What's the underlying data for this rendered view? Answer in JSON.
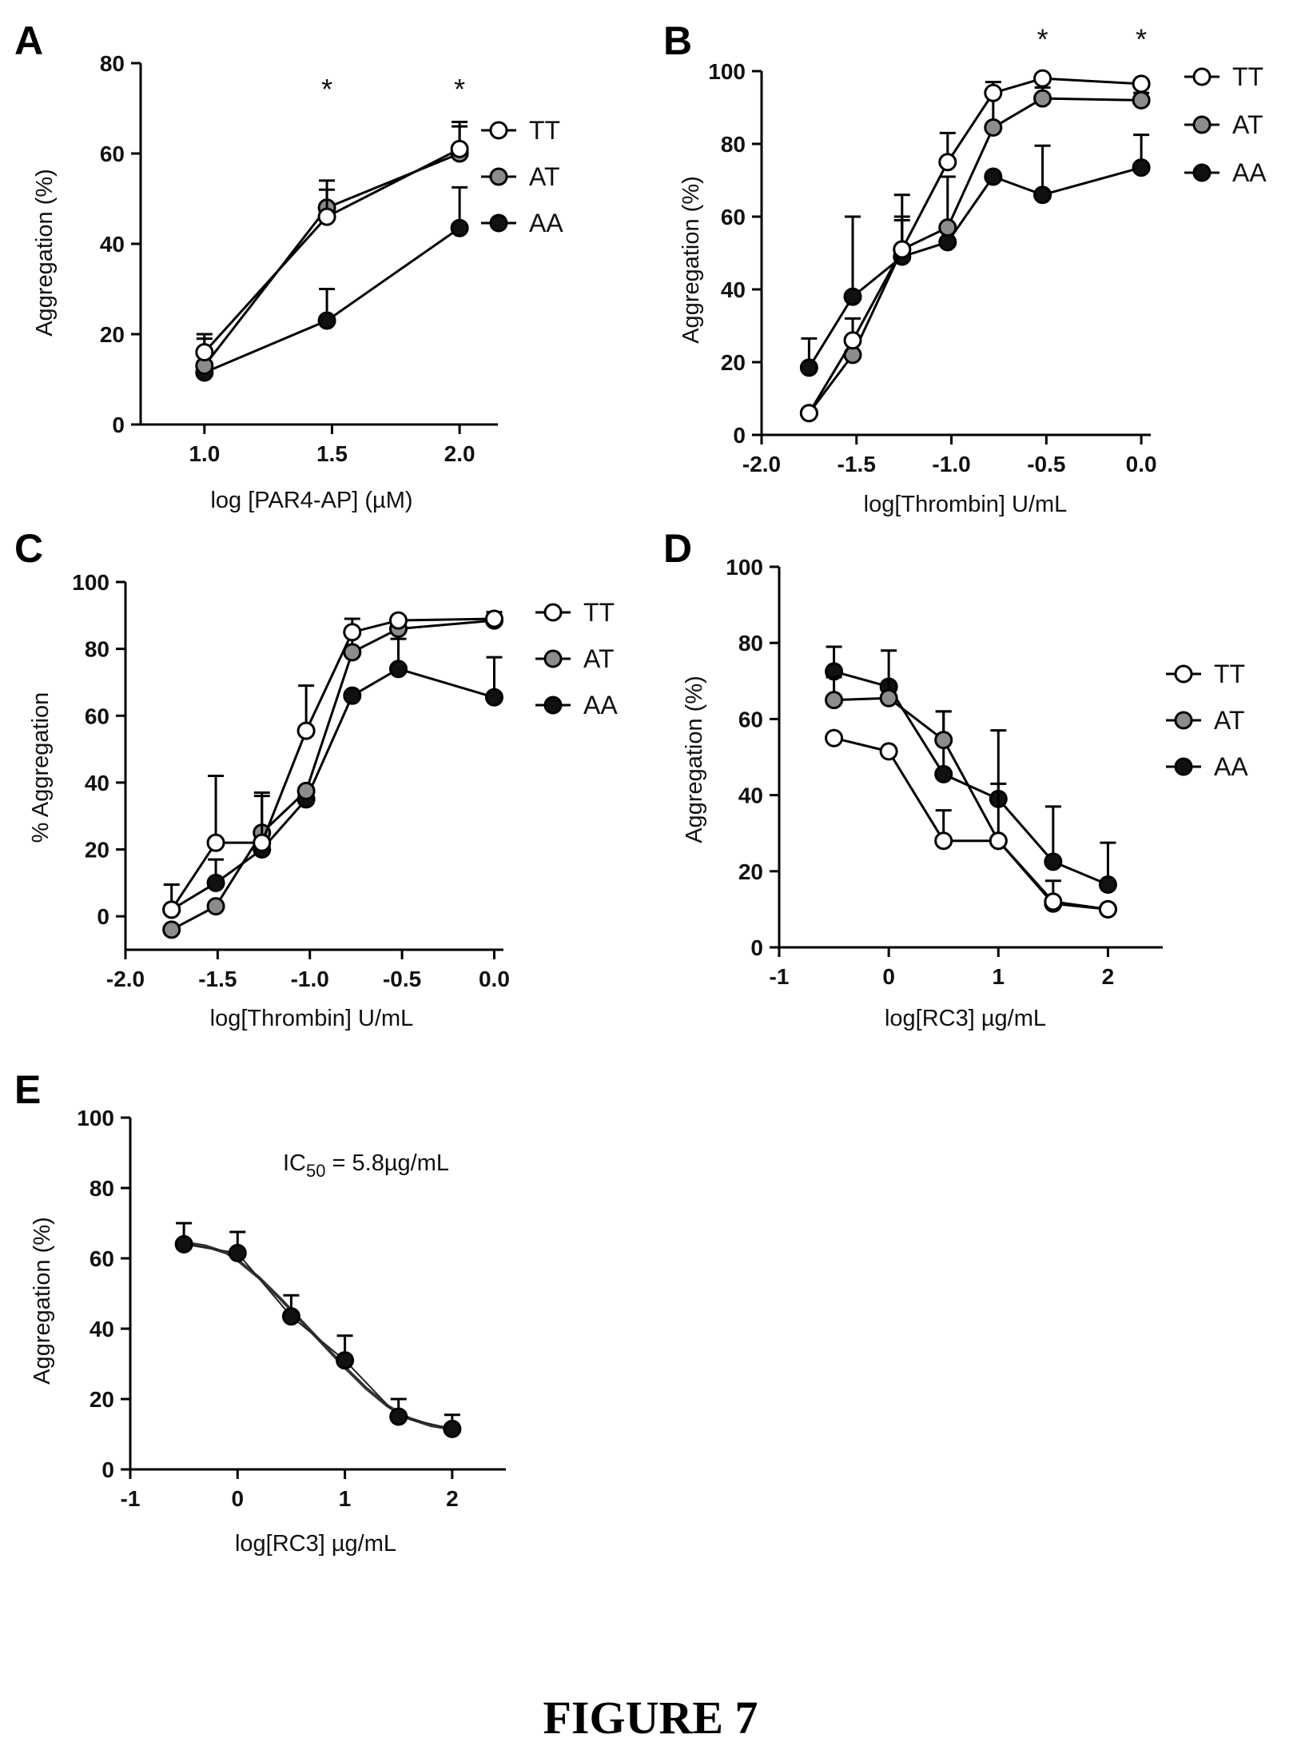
{
  "figure_caption": "FIGURE 7",
  "colors": {
    "TT": "#ffffff",
    "AT": "#8c8c8c",
    "AA": "#111111",
    "ink": "#000000"
  },
  "chart_data": [
    {
      "panel": "A",
      "type": "line",
      "xlabel": "log [PAR4-AP] (µM)",
      "ylabel": "Aggregation (%)",
      "xlim": [
        0.75,
        2.15
      ],
      "ylim": [
        0,
        80
      ],
      "xticks": [
        1.0,
        1.5,
        2.0
      ],
      "xtick_labels": [
        "1.0",
        "1.5",
        "2.0"
      ],
      "yticks": [
        0,
        20,
        40,
        60,
        80
      ],
      "ytick_labels": [
        "0",
        "20",
        "40",
        "60",
        "80"
      ],
      "legend": "right",
      "series": [
        {
          "name": "TT",
          "x": [
            1.0,
            1.48,
            2.0
          ],
          "y": [
            16,
            46,
            61
          ],
          "err": [
            4,
            6,
            5
          ]
        },
        {
          "name": "AT",
          "x": [
            1.0,
            1.48,
            2.0
          ],
          "y": [
            13,
            48,
            60
          ],
          "err": [
            6,
            6,
            7
          ]
        },
        {
          "name": "AA",
          "x": [
            1.0,
            1.48,
            2.0
          ],
          "y": [
            11.5,
            23,
            43.5
          ],
          "err": [
            0,
            7,
            9
          ]
        }
      ],
      "annotations": [
        {
          "text": "*",
          "x": 1.48,
          "y": 72
        },
        {
          "text": "*",
          "x": 2.0,
          "y": 72
        }
      ]
    },
    {
      "panel": "B",
      "type": "line",
      "xlabel": "log[Thrombin] U/mL",
      "ylabel": "Aggregation (%)",
      "xlim": [
        -2.0,
        0.05
      ],
      "ylim": [
        0,
        100
      ],
      "xticks": [
        -2.0,
        -1.5,
        -1.0,
        -0.5,
        0.0
      ],
      "xtick_labels": [
        "-2.0",
        "-1.5",
        "-1.0",
        "-0.5",
        "0.0"
      ],
      "yticks": [
        0,
        20,
        40,
        60,
        80,
        100
      ],
      "ytick_labels": [
        "0",
        "20",
        "40",
        "60",
        "80",
        "100"
      ],
      "legend": "right",
      "series": [
        {
          "name": "TT",
          "x": [
            -1.75,
            -1.52,
            -1.26,
            -1.02,
            -0.78,
            -0.52,
            0.0
          ],
          "y": [
            6,
            26,
            51,
            75,
            94,
            98,
            96.5
          ],
          "err": [
            0,
            6,
            9,
            8,
            3,
            1,
            1
          ]
        },
        {
          "name": "AT",
          "x": [
            -1.75,
            -1.52,
            -1.26,
            -1.02,
            -0.78,
            -0.52,
            0.0
          ],
          "y": [
            6,
            22,
            51,
            57,
            84.5,
            92.5,
            92
          ],
          "err": [
            0,
            0,
            15,
            14,
            9,
            3,
            2
          ]
        },
        {
          "name": "AA",
          "x": [
            -1.75,
            -1.52,
            -1.26,
            -1.02,
            -0.78,
            -0.52,
            0.0
          ],
          "y": [
            18.5,
            38,
            49,
            53,
            71,
            66,
            73.5
          ],
          "err": [
            8,
            22,
            10,
            0,
            0,
            13.5,
            9
          ]
        }
      ],
      "annotations": [
        {
          "text": "*",
          "x": -0.52,
          "y": 106
        },
        {
          "text": "*",
          "x": 0.0,
          "y": 106
        }
      ]
    },
    {
      "panel": "C",
      "type": "line",
      "xlabel": "log[Thrombin] U/mL",
      "ylabel": "% Aggregation",
      "xlim": [
        -2.0,
        0.05
      ],
      "ylim": [
        -10,
        100
      ],
      "xticks": [
        -2.0,
        -1.5,
        -1.0,
        -0.5,
        0.0
      ],
      "xtick_labels": [
        "-2.0",
        "-1.5",
        "-1.0",
        "-0.5",
        "0.0"
      ],
      "yticks": [
        0,
        20,
        40,
        60,
        80,
        100
      ],
      "ytick_labels": [
        "0",
        "20",
        "40",
        "60",
        "80",
        "100"
      ],
      "legend": "right",
      "series": [
        {
          "name": "TT",
          "x": [
            -1.75,
            -1.51,
            -1.26,
            -1.02,
            -0.77,
            -0.52,
            0.0
          ],
          "y": [
            2,
            22,
            22,
            55.5,
            85,
            88.5,
            89
          ],
          "err": [
            7.5,
            20,
            14,
            13.5,
            4,
            1,
            2
          ]
        },
        {
          "name": "AT",
          "x": [
            -1.75,
            -1.51,
            -1.26,
            -1.02,
            -0.77,
            -0.52,
            0.0
          ],
          "y": [
            -4,
            3,
            25,
            37.5,
            79,
            86,
            88.5
          ],
          "err": [
            0,
            0,
            12,
            0,
            6,
            0,
            0
          ]
        },
        {
          "name": "AA",
          "x": [
            -1.75,
            -1.51,
            -1.26,
            -1.02,
            -0.77,
            -0.52,
            0.0
          ],
          "y": [
            2,
            10,
            20,
            35,
            66,
            74,
            65.5
          ],
          "err": [
            0,
            7,
            0,
            0,
            0,
            9,
            12
          ]
        }
      ]
    },
    {
      "panel": "D",
      "type": "line",
      "xlabel": "log[RC3] µg/mL",
      "ylabel": "Aggregation (%)",
      "xlim": [
        -1,
        2.5
      ],
      "ylim": [
        0,
        100
      ],
      "xticks": [
        -1,
        0,
        1,
        2
      ],
      "xtick_labels": [
        "-1",
        "0",
        "1",
        "2"
      ],
      "yticks": [
        0,
        20,
        40,
        60,
        80,
        100
      ],
      "ytick_labels": [
        "0",
        "20",
        "40",
        "60",
        "80",
        "100"
      ],
      "legend": "right",
      "series": [
        {
          "name": "TT",
          "x": [
            -0.5,
            0.0,
            0.5,
            1.0,
            1.5,
            2.0
          ],
          "y": [
            55,
            51.5,
            28,
            28,
            12,
            10
          ],
          "err": [
            0,
            0,
            8,
            0,
            0,
            0
          ]
        },
        {
          "name": "AT",
          "x": [
            -0.5,
            0.0,
            0.5,
            1.0,
            1.5,
            2.0
          ],
          "y": [
            65,
            65.5,
            54.5,
            28,
            11.5,
            10
          ],
          "err": [
            6,
            12.5,
            7.5,
            15,
            6,
            0
          ]
        },
        {
          "name": "AA",
          "x": [
            -0.5,
            0.0,
            0.5,
            1.0,
            1.5,
            2.0
          ],
          "y": [
            72.5,
            68.5,
            45.5,
            39,
            22.5,
            16.5
          ],
          "err": [
            6.5,
            0,
            16.5,
            18,
            14.5,
            11
          ]
        }
      ]
    },
    {
      "panel": "E",
      "type": "line",
      "xlabel": "log[RC3] µg/mL",
      "ylabel": "Aggregation (%)",
      "xlim": [
        -1,
        2.5
      ],
      "ylim": [
        0,
        100
      ],
      "xticks": [
        -1,
        0,
        1,
        2
      ],
      "xtick_labels": [
        "-1",
        "0",
        "1",
        "2"
      ],
      "yticks": [
        0,
        20,
        40,
        60,
        80,
        100
      ],
      "ytick_labels": [
        "0",
        "20",
        "40",
        "60",
        "80",
        "100"
      ],
      "ic50_text": "IC",
      "ic50_sub": "50",
      "ic50_value": " = 5.8µg/mL",
      "series": [
        {
          "x": [
            -0.5,
            0.0,
            0.5,
            1.0,
            1.5,
            2.0
          ],
          "y": [
            64,
            61.5,
            43.5,
            31,
            15,
            11.5
          ],
          "err": [
            6,
            6,
            6,
            7,
            5,
            4
          ]
        }
      ],
      "fit": {
        "x": [
          -0.5,
          -0.3,
          -0.1,
          0.0,
          0.2,
          0.4,
          0.6,
          0.8,
          1.0,
          1.2,
          1.4,
          1.6,
          1.8,
          2.0
        ],
        "y": [
          64.5,
          63.5,
          61.5,
          59.5,
          54.5,
          48.5,
          42,
          35.5,
          29,
          23,
          18,
          14.5,
          12.5,
          11.5
        ]
      }
    }
  ]
}
